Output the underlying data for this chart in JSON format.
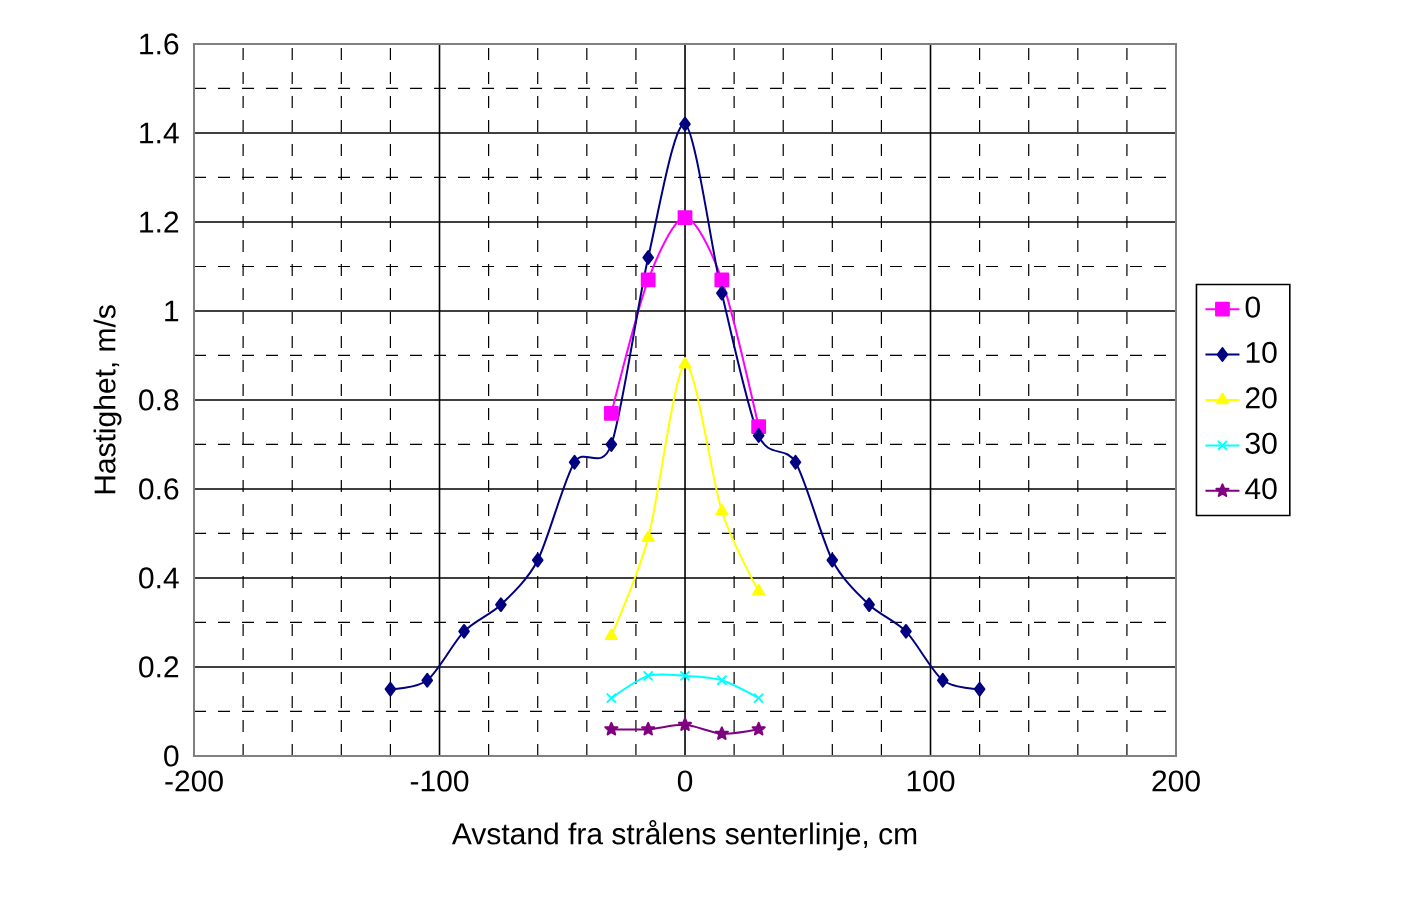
{
  "chart_data": {
    "type": "line",
    "xlabel": "Avstand fra strålens senterlinje, cm",
    "ylabel": "Hastighet, m/s",
    "xlim": [
      -200,
      200
    ],
    "xticks": [
      -200,
      -100,
      0,
      100,
      200
    ],
    "ylim": [
      0,
      1.6
    ],
    "yticks": [
      0,
      0.2,
      0.4,
      0.6,
      0.8,
      1,
      1.2,
      1.4,
      1.6
    ],
    "grid": true,
    "legend": "right",
    "series": [
      {
        "name": "0",
        "color": "#ff00ff",
        "marker": "square",
        "x": [
          -30,
          -15,
          0,
          15,
          30
        ],
        "values": [
          0.77,
          1.07,
          1.21,
          1.07,
          0.74
        ]
      },
      {
        "name": "10",
        "color": "#000080",
        "marker": "diamond",
        "x": [
          -120,
          -105,
          -90,
          -75,
          -60,
          -45,
          -30,
          -15,
          0,
          15,
          30,
          45,
          60,
          75,
          90,
          105,
          120
        ],
        "values": [
          0.15,
          0.17,
          0.28,
          0.34,
          0.44,
          0.66,
          0.7,
          1.12,
          1.42,
          1.04,
          0.72,
          0.66,
          0.44,
          0.34,
          0.28,
          0.17,
          0.15
        ]
      },
      {
        "name": "20",
        "color": "#ffff00",
        "marker": "triangle",
        "x": [
          -30,
          -15,
          0,
          15,
          30
        ],
        "values": [
          0.27,
          0.49,
          0.88,
          0.55,
          0.37
        ]
      },
      {
        "name": "30",
        "color": "#00ffff",
        "marker": "cross",
        "x": [
          -30,
          -15,
          0,
          15,
          30
        ],
        "values": [
          0.13,
          0.18,
          0.18,
          0.17,
          0.13
        ]
      },
      {
        "name": "40",
        "color": "#800080",
        "marker": "star",
        "x": [
          -30,
          -15,
          0,
          15,
          30
        ],
        "values": [
          0.06,
          0.06,
          0.07,
          0.05,
          0.06
        ]
      }
    ]
  }
}
